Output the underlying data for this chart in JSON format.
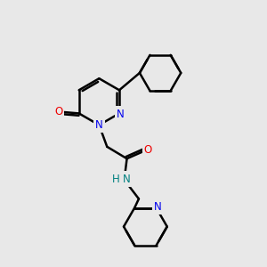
{
  "background_color": "#e8e8e8",
  "bond_color": "#000000",
  "bond_width": 1.8,
  "atom_colors": {
    "N": "#0000ee",
    "O": "#ee0000",
    "NH": "#008080",
    "C": "#000000"
  },
  "font_size": 8.5,
  "figsize": [
    3.0,
    3.0
  ],
  "dpi": 100,
  "xlim": [
    0,
    10
  ],
  "ylim": [
    0,
    10
  ]
}
